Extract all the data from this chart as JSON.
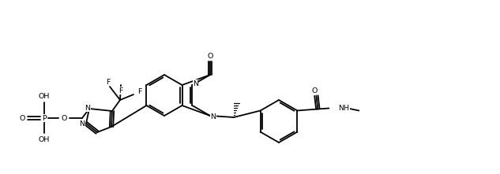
{
  "bg": "#ffffff",
  "lw": 1.3,
  "fs": 6.8,
  "fig_w": 6.31,
  "fig_h": 2.2,
  "dpi": 100
}
